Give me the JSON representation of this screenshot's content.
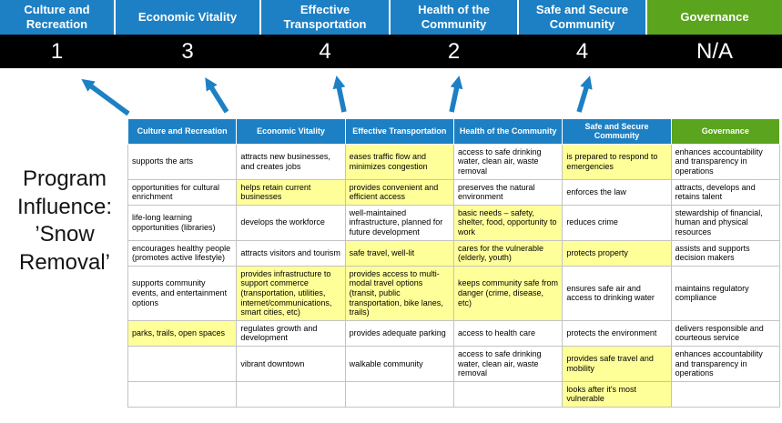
{
  "title": "Program Influence: ’Snow Removal’",
  "colors": {
    "category_blue": "#1d80c4",
    "governance_green": "#5aa41e",
    "highlight_yellow": "#ffff99",
    "score_bar_black": "#000000",
    "arrow_blue": "#1d80c4"
  },
  "icons": {
    "influence_arrow": "diagonal-up-arrow"
  },
  "top": {
    "categories": [
      {
        "label": "Culture and Recreation",
        "score": "1"
      },
      {
        "label": "Economic Vitality",
        "score": "3"
      },
      {
        "label": "Effective Transportation",
        "score": "4"
      },
      {
        "label": "Health of the Community",
        "score": "2"
      },
      {
        "label": "Safe and Secure Community",
        "score": "4"
      },
      {
        "label": "Governance",
        "score": "N/A"
      }
    ]
  },
  "matrix": {
    "headers": [
      "Culture and Recreation",
      "Economic Vitality",
      "Effective Transportation",
      "Health of the Community",
      "Safe and Secure Community",
      "Governance"
    ],
    "rows": [
      {
        "cells": [
          {
            "t": "supports the arts",
            "h": false
          },
          {
            "t": "attracts new businesses, and creates jobs",
            "h": false
          },
          {
            "t": "eases traffic flow and minimizes congestion",
            "h": true
          },
          {
            "t": "access to safe drinking water, clean air, waste removal",
            "h": false
          },
          {
            "t": "is prepared to respond to emergencies",
            "h": true
          },
          {
            "t": "enhances accountability and transparency in operations",
            "h": false
          }
        ]
      },
      {
        "cells": [
          {
            "t": "opportunities for cultural enrichment",
            "h": false
          },
          {
            "t": "helps retain current businesses",
            "h": true
          },
          {
            "t": "provides convenient and efficient access",
            "h": true
          },
          {
            "t": "preserves the natural environment",
            "h": false
          },
          {
            "t": "enforces the law",
            "h": false
          },
          {
            "t": "attracts, develops and retains talent",
            "h": false
          }
        ]
      },
      {
        "cells": [
          {
            "t": "life-long learning opportunities (libraries)",
            "h": false
          },
          {
            "t": "develops the workforce",
            "h": false
          },
          {
            "t": "well-maintained infrastructure, planned for future development",
            "h": false
          },
          {
            "t": "basic needs – safety, shelter, food, opportunity to work",
            "h": true
          },
          {
            "t": "reduces crime",
            "h": false
          },
          {
            "t": "stewardship of financial, human and physical resources",
            "h": false
          }
        ]
      },
      {
        "cells": [
          {
            "t": "encourages healthy people (promotes active lifestyle)",
            "h": false
          },
          {
            "t": "attracts visitors and tourism",
            "h": false
          },
          {
            "t": "safe travel, well-lit",
            "h": true
          },
          {
            "t": "cares for the vulnerable (elderly, youth)",
            "h": true
          },
          {
            "t": "protects property",
            "h": true
          },
          {
            "t": "assists and supports decision makers",
            "h": false
          }
        ]
      },
      {
        "cells": [
          {
            "t": "supports community events, and entertainment options",
            "h": false
          },
          {
            "t": "provides infrastructure to support commerce (transportation, utilities, internet/communications, smart cities, etc)",
            "h": true
          },
          {
            "t": "provides access to multi-modal travel options (transit, public transportation, bike lanes, trails)",
            "h": true
          },
          {
            "t": "keeps community safe from danger (crime, disease, etc)",
            "h": true
          },
          {
            "t": "ensures safe air and access to drinking water",
            "h": false
          },
          {
            "t": "maintains regulatory compliance",
            "h": false
          }
        ]
      },
      {
        "cells": [
          {
            "t": "parks, trails, open spaces",
            "h": true
          },
          {
            "t": "regulates growth and development",
            "h": false
          },
          {
            "t": "provides adequate parking",
            "h": false
          },
          {
            "t": "access to health care",
            "h": false
          },
          {
            "t": "protects the environment",
            "h": false
          },
          {
            "t": "delivers responsible and courteous service",
            "h": false
          }
        ]
      },
      {
        "cells": [
          {
            "t": "",
            "h": false
          },
          {
            "t": "vibrant downtown",
            "h": false
          },
          {
            "t": "walkable community",
            "h": false
          },
          {
            "t": "access to safe drinking water, clean air, waste removal",
            "h": false
          },
          {
            "t": "provides safe travel and mobility",
            "h": true
          },
          {
            "t": "enhances accountability and transparency in operations",
            "h": false
          }
        ]
      },
      {
        "cells": [
          {
            "t": "",
            "h": false
          },
          {
            "t": "",
            "h": false
          },
          {
            "t": "",
            "h": false
          },
          {
            "t": "",
            "h": false
          },
          {
            "t": "looks after it's most vulnerable",
            "h": true
          },
          {
            "t": "",
            "h": false
          }
        ]
      }
    ]
  }
}
